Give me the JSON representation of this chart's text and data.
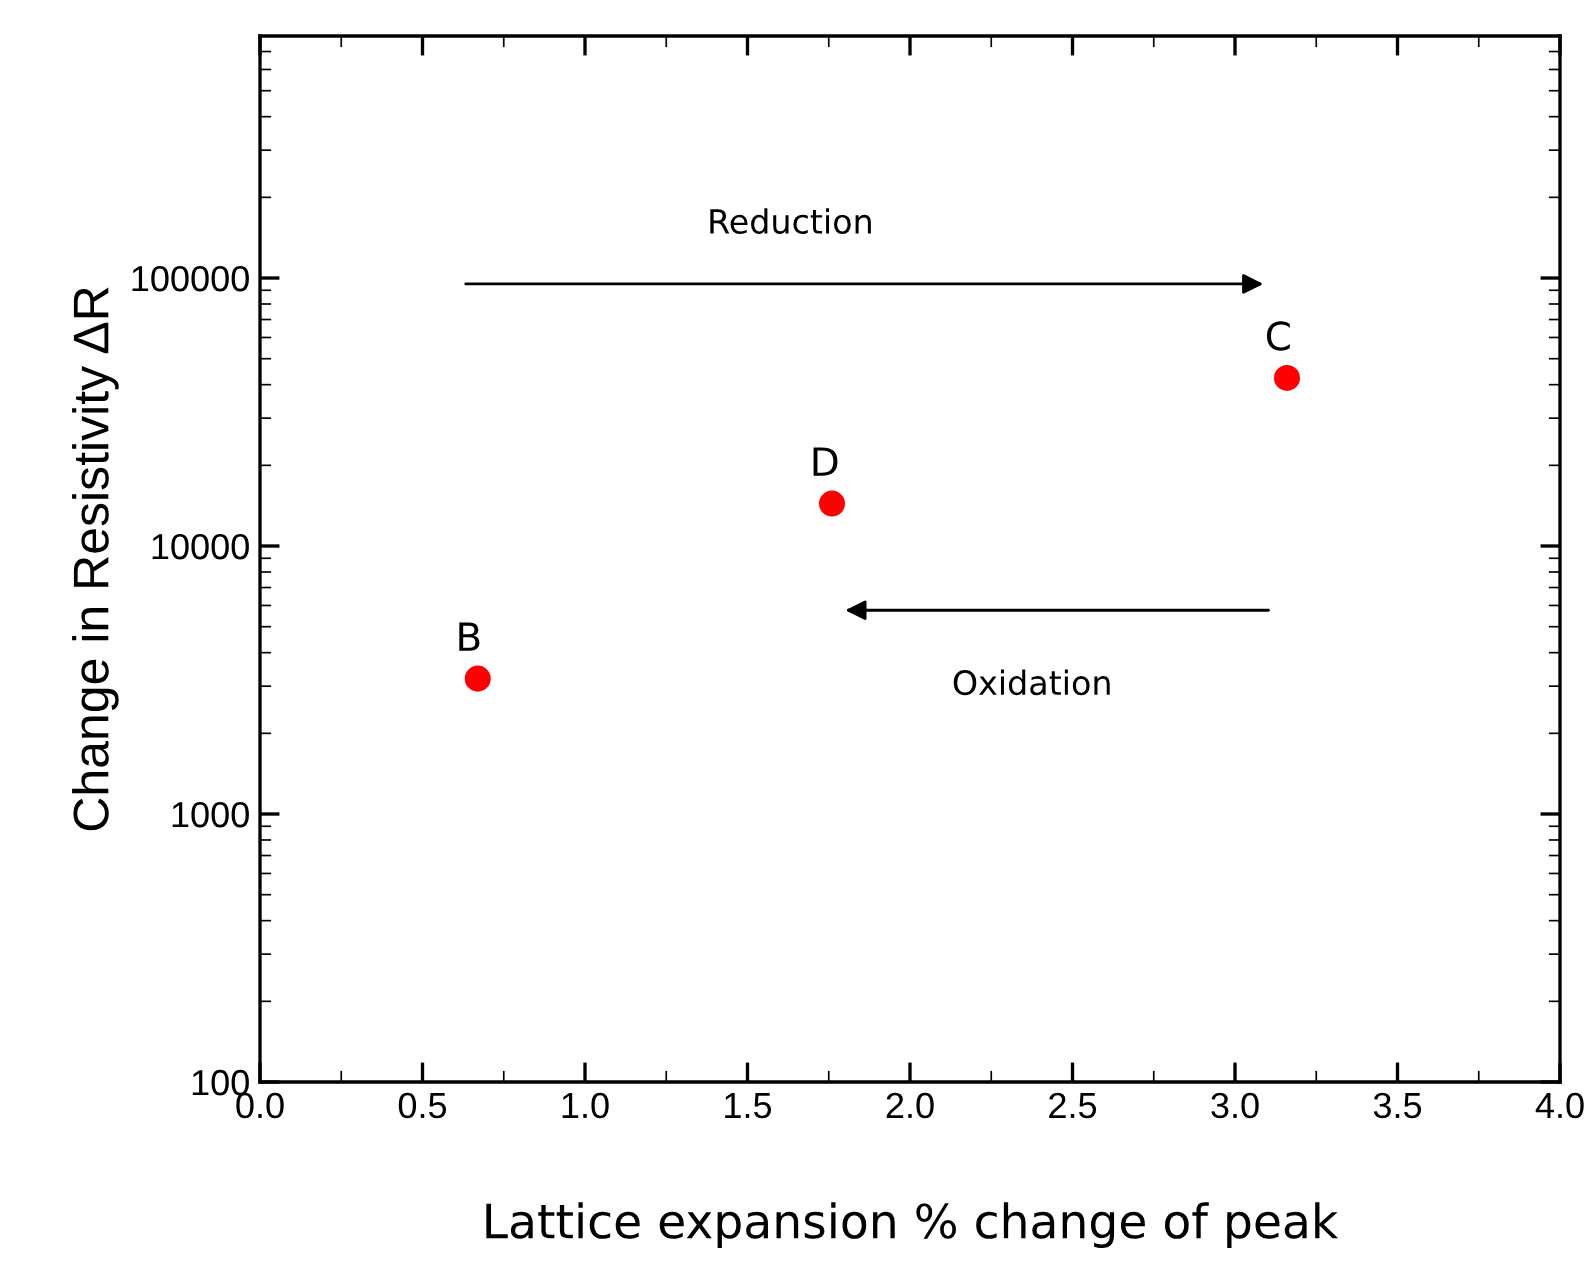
{
  "chart_data": {
    "type": "scatter",
    "xlabel": "Lattice expansion % change of peak",
    "ylabel": "Change in Resistivity ΔR",
    "log": "y",
    "x": [
      0.67,
      1.76,
      3.16
    ],
    "series": [
      {
        "color": "#ff0000",
        "values": [
          3200,
          14400,
          42400
        ]
      }
    ],
    "marker": "circle",
    "grid": false,
    "legend": false,
    "xlim": [
      0.0,
      4.0
    ],
    "xticks": [
      {
        "value": 0,
        "label": "0.0"
      },
      {
        "value": 0.5,
        "label": "0.5"
      },
      {
        "value": 1,
        "label": "1.0"
      },
      {
        "value": 1.5,
        "label": "1.5"
      },
      {
        "value": 2,
        "label": "2.0"
      },
      {
        "value": 2.5,
        "label": "2.5"
      },
      {
        "value": 3,
        "label": "3.0"
      },
      {
        "value": 3.5,
        "label": "3.5"
      },
      {
        "value": 4,
        "label": "4.0"
      }
    ],
    "ylim": [
      100,
      800000
    ],
    "yticks": [
      100,
      1000,
      10000,
      100000
    ],
    "annotations": [
      {
        "text": "B",
        "x": 0.67,
        "y": 3200
      },
      {
        "text": "D",
        "x": 1.76,
        "y": 14400
      },
      {
        "text": "C",
        "x": 3.16,
        "y": 42400
      },
      "Reduction",
      "Oxidation"
    ]
  }
}
